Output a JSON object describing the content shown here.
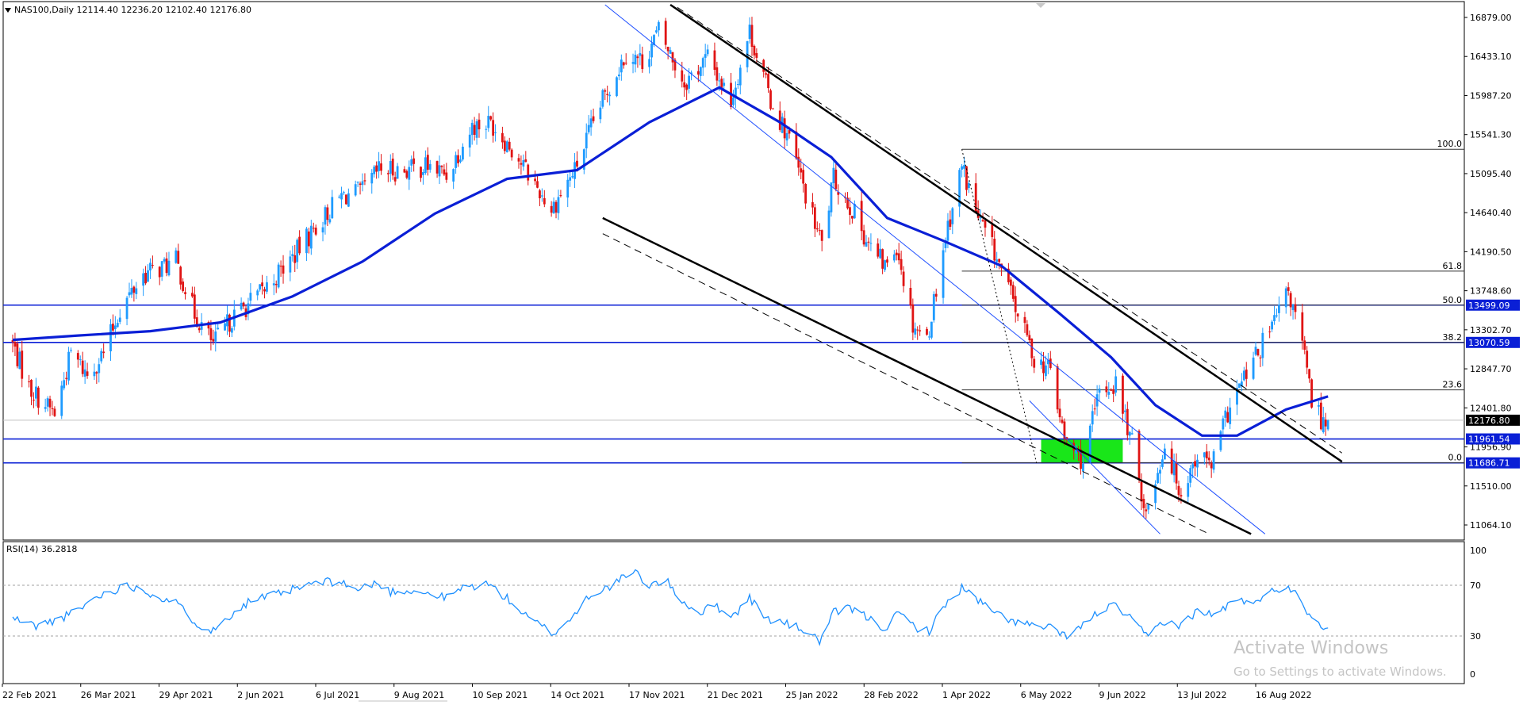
{
  "header": {
    "symbol_line": "NAS100,Daily  12114.40 12236.20 12102.40 12176.80",
    "rsi_line": "RSI(14) 36.2818"
  },
  "watermark": {
    "line1": "Activate Windows",
    "line2": "Go to Settings to activate Windows."
  },
  "colors": {
    "bull": "#1e9bff",
    "bear": "#e01414",
    "ma": "#0a1fd6",
    "level_line": "#0a1fd6",
    "fib_line": "#333333",
    "zone": "#19e619",
    "rsi": "#1e90ff",
    "current_price_bg": "#000000"
  },
  "chart_data": [
    {
      "type": "candlestick",
      "name": "NAS100,Daily",
      "open": 12114.4,
      "high": 12236.2,
      "low": 12102.4,
      "close": 12176.8,
      "ylim": [
        10800,
        16950
      ],
      "price_ticks": [
        "16879.00",
        "16433.10",
        "15987.20",
        "15541.30",
        "15095.40",
        "14640.40",
        "14190.50",
        "13748.60",
        "13302.70",
        "12847.70",
        "12401.80",
        "11956.90",
        "11510.00",
        "11064.10"
      ],
      "date_ticks": [
        "22 Feb 2021",
        "26 Mar 2021",
        "29 Apr 2021",
        "2 Jun 2021",
        "6 Jul 2021",
        "9 Aug 2021",
        "10 Sep 2021",
        "14 Oct 2021",
        "17 Nov 2021",
        "21 Dec 2021",
        "25 Jan 2022",
        "28 Feb 2022",
        "1 Apr 2022",
        "6 May 2022",
        "9 Jun 2022",
        "13 Jul 2022",
        "16 Aug 2022"
      ],
      "close_path": [
        [
          "2021-02-15",
          13050
        ],
        [
          "2021-02-22",
          12550
        ],
        [
          "2021-03-05",
          12250
        ],
        [
          "2021-03-12",
          12950
        ],
        [
          "2021-03-19",
          12700
        ],
        [
          "2021-03-26",
          12950
        ],
        [
          "2021-04-02",
          13450
        ],
        [
          "2021-04-12",
          13850
        ],
        [
          "2021-04-26",
          14000
        ],
        [
          "2021-05-04",
          13400
        ],
        [
          "2021-05-12",
          13050
        ],
        [
          "2021-05-20",
          13350
        ],
        [
          "2021-06-02",
          13650
        ],
        [
          "2021-06-15",
          14050
        ],
        [
          "2021-06-25",
          14400
        ],
        [
          "2021-07-06",
          14750
        ],
        [
          "2021-07-15",
          14800
        ],
        [
          "2021-07-22",
          15050
        ],
        [
          "2021-08-02",
          15050
        ],
        [
          "2021-08-12",
          15100
        ],
        [
          "2021-08-20",
          15000
        ],
        [
          "2021-08-31",
          15550
        ],
        [
          "2021-09-08",
          15600
        ],
        [
          "2021-09-17",
          15300
        ],
        [
          "2021-10-04",
          14600
        ],
        [
          "2021-10-14",
          15050
        ],
        [
          "2021-10-25",
          15800
        ],
        [
          "2021-11-05",
          16400
        ],
        [
          "2021-11-12",
          16300
        ],
        [
          "2021-11-19",
          16650
        ],
        [
          "2021-11-30",
          16050
        ],
        [
          "2021-12-10",
          16350
        ],
        [
          "2021-12-20",
          15850
        ],
        [
          "2021-12-28",
          16650
        ],
        [
          "2022-01-06",
          15850
        ],
        [
          "2022-01-14",
          15400
        ],
        [
          "2022-01-24",
          14500
        ],
        [
          "2022-01-28",
          14200
        ],
        [
          "2022-02-02",
          14950
        ],
        [
          "2022-02-10",
          14600
        ],
        [
          "2022-02-18",
          14150
        ],
        [
          "2022-02-24",
          13950
        ],
        [
          "2022-03-01",
          14200
        ],
        [
          "2022-03-08",
          13300
        ],
        [
          "2022-03-14",
          13100
        ],
        [
          "2022-03-22",
          14300
        ],
        [
          "2022-03-29",
          15100
        ],
        [
          "2022-04-05",
          14500
        ],
        [
          "2022-04-12",
          14100
        ],
        [
          "2022-04-22",
          13400
        ],
        [
          "2022-04-29",
          12900
        ],
        [
          "2022-05-06",
          12750
        ],
        [
          "2022-05-12",
          11950
        ],
        [
          "2022-05-20",
          11700
        ],
        [
          "2022-05-27",
          12500
        ],
        [
          "2022-06-03",
          12600
        ],
        [
          "2022-06-10",
          11900
        ],
        [
          "2022-06-16",
          11100
        ],
        [
          "2022-06-24",
          11900
        ],
        [
          "2022-07-01",
          11350
        ],
        [
          "2022-07-08",
          11800
        ],
        [
          "2022-07-14",
          11650
        ],
        [
          "2022-07-22",
          12350
        ],
        [
          "2022-08-01",
          12850
        ],
        [
          "2022-08-10",
          13300
        ],
        [
          "2022-08-16",
          13650
        ],
        [
          "2022-08-22",
          13050
        ],
        [
          "2022-08-26",
          12400
        ],
        [
          "2022-08-31",
          12150
        ],
        [
          "2022-09-02",
          12177
        ]
      ],
      "moving_average": [
        [
          "2021-02-15",
          13100
        ],
        [
          "2021-03-15",
          13150
        ],
        [
          "2021-04-15",
          13200
        ],
        [
          "2021-05-15",
          13300
        ],
        [
          "2021-06-15",
          13600
        ],
        [
          "2021-07-15",
          14000
        ],
        [
          "2021-08-15",
          14550
        ],
        [
          "2021-09-15",
          14950
        ],
        [
          "2021-10-15",
          15050
        ],
        [
          "2021-11-15",
          15600
        ],
        [
          "2021-12-15",
          16000
        ],
        [
          "2022-01-10",
          15600
        ],
        [
          "2022-02-01",
          15200
        ],
        [
          "2022-02-25",
          14500
        ],
        [
          "2022-03-20",
          14250
        ],
        [
          "2022-04-15",
          13950
        ],
        [
          "2022-05-10",
          13400
        ],
        [
          "2022-06-01",
          12900
        ],
        [
          "2022-06-20",
          12350
        ],
        [
          "2022-07-10",
          12000
        ],
        [
          "2022-07-25",
          12000
        ],
        [
          "2022-08-15",
          12300
        ],
        [
          "2022-09-02",
          12450
        ]
      ],
      "horizontal_levels": [
        {
          "price": 13499.09,
          "label": "13499.09"
        },
        {
          "price": 13070.59,
          "label": "13070.59"
        },
        {
          "price": 11961.54,
          "label": "11961.54"
        },
        {
          "price": 11686.71,
          "label": "11686.71"
        }
      ],
      "current_price": {
        "price": 12176.8,
        "label": "12176.80"
      },
      "fibonacci": {
        "start_date": "2022-03-29",
        "levels": [
          {
            "ratio": "100.0",
            "price": 15290
          },
          {
            "ratio": "61.8",
            "price": 13890
          },
          {
            "ratio": "50.0",
            "price": 13499.09
          },
          {
            "ratio": "38.2",
            "price": 13070.59
          },
          {
            "ratio": "23.6",
            "price": 12525
          },
          {
            "ratio": "0.0",
            "price": 11686.71
          }
        ]
      },
      "demand_zone": {
        "from": "2022-05-02",
        "to": "2022-06-06",
        "low": 11686.71,
        "high": 11961.54
      },
      "trend_channels": [
        {
          "style": "solid",
          "color": "#000000",
          "width": 2.5,
          "points": [
            [
              "2021-11-24",
              16950
            ],
            [
              "2022-09-08",
              11700
            ]
          ]
        },
        {
          "style": "dashed",
          "color": "#000000",
          "width": 1,
          "points": [
            [
              "2021-11-27",
              16920
            ],
            [
              "2022-09-08",
              11800
            ]
          ]
        },
        {
          "style": "solid",
          "color": "#000000",
          "width": 2.5,
          "points": [
            [
              "2021-10-26",
              14500
            ],
            [
              "2022-07-31",
              10870
            ]
          ]
        },
        {
          "style": "dashed",
          "color": "#000000",
          "width": 1,
          "points": [
            [
              "2021-10-26",
              14320
            ],
            [
              "2022-07-13",
              10870
            ]
          ]
        },
        {
          "style": "solid",
          "color": "#1f4fff",
          "width": 1,
          "points": [
            [
              "2021-10-27",
              16950
            ],
            [
              "2022-08-06",
              10870
            ]
          ]
        },
        {
          "style": "solid",
          "color": "#1f4fff",
          "width": 1,
          "points": [
            [
              "2022-04-27",
              12400
            ],
            [
              "2022-06-22",
              10870
            ]
          ]
        },
        {
          "style": "dotted",
          "color": "#000000",
          "width": 1,
          "points": [
            [
              "2022-03-29",
              15290
            ],
            [
              "2022-04-30",
              11686.71
            ]
          ]
        }
      ]
    },
    {
      "type": "line",
      "name": "RSI(14)",
      "value": 36.2818,
      "ylim": [
        0,
        100
      ],
      "levels": [
        30,
        70
      ],
      "tick_labels": [
        "100",
        "70",
        "30",
        "0"
      ],
      "values": [
        [
          "2021-02-15",
          44
        ],
        [
          "2021-02-25",
          38
        ],
        [
          "2021-03-05",
          42
        ],
        [
          "2021-03-15",
          50
        ],
        [
          "2021-03-22",
          60
        ],
        [
          "2021-03-30",
          66
        ],
        [
          "2021-04-06",
          70
        ],
        [
          "2021-04-16",
          63
        ],
        [
          "2021-04-26",
          56
        ],
        [
          "2021-05-05",
          40
        ],
        [
          "2021-05-12",
          34
        ],
        [
          "2021-05-20",
          48
        ],
        [
          "2021-05-28",
          58
        ],
        [
          "2021-06-07",
          62
        ],
        [
          "2021-06-16",
          67
        ],
        [
          "2021-06-25",
          72
        ],
        [
          "2021-07-05",
          73
        ],
        [
          "2021-07-13",
          66
        ],
        [
          "2021-07-20",
          72
        ],
        [
          "2021-07-27",
          65
        ],
        [
          "2021-08-05",
          66
        ],
        [
          "2021-08-13",
          63
        ],
        [
          "2021-08-20",
          60
        ],
        [
          "2021-08-27",
          68
        ],
        [
          "2021-09-07",
          71
        ],
        [
          "2021-09-16",
          58
        ],
        [
          "2021-09-24",
          44
        ],
        [
          "2021-10-05",
          32
        ],
        [
          "2021-10-13",
          45
        ],
        [
          "2021-10-20",
          62
        ],
        [
          "2021-10-28",
          68
        ],
        [
          "2021-11-04",
          76
        ],
        [
          "2021-11-09",
          80
        ],
        [
          "2021-11-15",
          70
        ],
        [
          "2021-11-22",
          74
        ],
        [
          "2021-11-29",
          58
        ],
        [
          "2021-12-06",
          48
        ],
        [
          "2021-12-13",
          54
        ],
        [
          "2021-12-21",
          46
        ],
        [
          "2021-12-28",
          60
        ],
        [
          "2022-01-04",
          44
        ],
        [
          "2022-01-12",
          40
        ],
        [
          "2022-01-20",
          35
        ],
        [
          "2022-01-27",
          26
        ],
        [
          "2022-02-02",
          48
        ],
        [
          "2022-02-09",
          52
        ],
        [
          "2022-02-17",
          44
        ],
        [
          "2022-02-24",
          36
        ],
        [
          "2022-03-02",
          48
        ],
        [
          "2022-03-09",
          37
        ],
        [
          "2022-03-15",
          34
        ],
        [
          "2022-03-22",
          55
        ],
        [
          "2022-03-29",
          68
        ],
        [
          "2022-04-05",
          58
        ],
        [
          "2022-04-12",
          48
        ],
        [
          "2022-04-20",
          42
        ],
        [
          "2022-04-28",
          38
        ],
        [
          "2022-05-06",
          36
        ],
        [
          "2022-05-12",
          30
        ],
        [
          "2022-05-20",
          38
        ],
        [
          "2022-05-27",
          50
        ],
        [
          "2022-06-03",
          54
        ],
        [
          "2022-06-10",
          42
        ],
        [
          "2022-06-16",
          30
        ],
        [
          "2022-06-24",
          42
        ],
        [
          "2022-07-01",
          38
        ],
        [
          "2022-07-08",
          50
        ],
        [
          "2022-07-15",
          46
        ],
        [
          "2022-07-22",
          56
        ],
        [
          "2022-08-01",
          58
        ],
        [
          "2022-08-08",
          64
        ],
        [
          "2022-08-16",
          70
        ],
        [
          "2022-08-22",
          57
        ],
        [
          "2022-08-26",
          44
        ],
        [
          "2022-09-02",
          36.28
        ]
      ]
    }
  ]
}
